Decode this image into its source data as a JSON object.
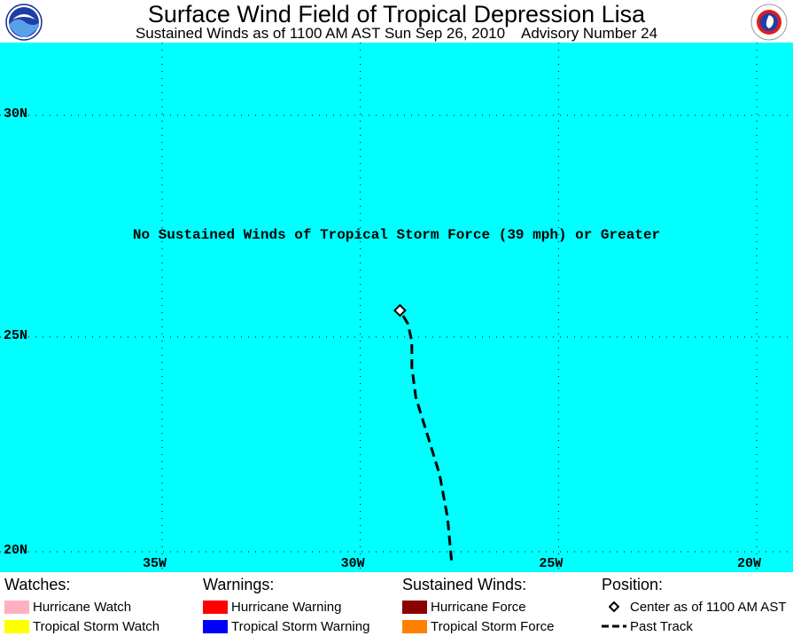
{
  "header": {
    "title": "Surface Wind Field of Tropical Depression Lisa",
    "subtitle": "Sustained Winds as of 1100 AM AST Sun Sep 26, 2010    Advisory Number 24"
  },
  "map": {
    "background_color": "#00ffff",
    "latitudes": [
      "30N",
      "25N",
      "20N"
    ],
    "longitudes": [
      "35W",
      "30W",
      "25W",
      "20W"
    ],
    "notice": "No Sustained Winds of Tropical Storm Force (39 mph) or Greater",
    "storm_center": {
      "lat": 25.6,
      "lon": -29.0
    },
    "past_track": [
      {
        "lat": 19.8,
        "lon": -27.7
      },
      {
        "lat": 20.8,
        "lon": -27.8
      },
      {
        "lat": 21.8,
        "lon": -28.0
      },
      {
        "lat": 22.7,
        "lon": -28.3
      },
      {
        "lat": 23.6,
        "lon": -28.6
      },
      {
        "lat": 24.3,
        "lon": -28.7
      },
      {
        "lat": 24.9,
        "lon": -28.7
      },
      {
        "lat": 25.3,
        "lon": -28.8
      },
      {
        "lat": 25.6,
        "lon": -29.0
      }
    ]
  },
  "legend": {
    "watches": {
      "heading": "Watches:",
      "items": [
        {
          "label": "Hurricane Watch",
          "color": "#ffb0c0"
        },
        {
          "label": "Tropical Storm Watch",
          "color": "#ffff00"
        }
      ]
    },
    "warnings": {
      "heading": "Warnings:",
      "items": [
        {
          "label": "Hurricane Warning",
          "color": "#ff0000"
        },
        {
          "label": "Tropical Storm Warning",
          "color": "#0000ff"
        }
      ]
    },
    "winds": {
      "heading": "Sustained Winds:",
      "items": [
        {
          "label": "Hurricane Force",
          "color": "#8b0000"
        },
        {
          "label": "Tropical Storm Force",
          "color": "#ff8000"
        }
      ]
    },
    "position": {
      "heading": "Position:",
      "center_label": "Center as of 1100 AM AST",
      "track_label": "Past Track"
    }
  }
}
